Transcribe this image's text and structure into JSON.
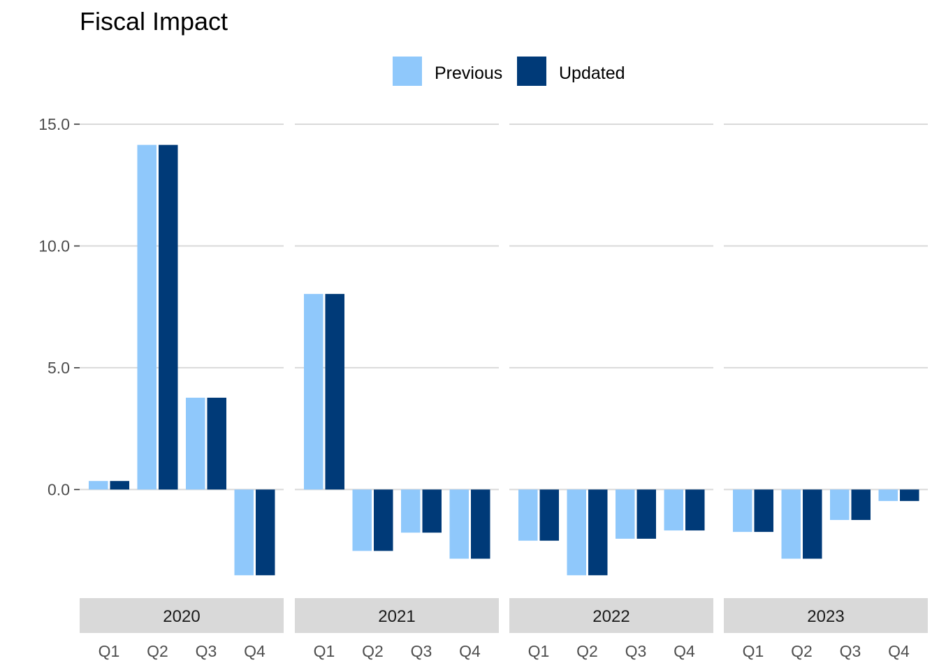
{
  "chart_data": {
    "type": "bar",
    "title": "Fiscal Impact",
    "xlabel": "",
    "ylabel": "",
    "ylim": [
      -4.2,
      15.6
    ],
    "yticks": [
      0.0,
      5.0,
      10.0,
      15.0
    ],
    "ytick_labels": [
      "0.0",
      "5.0",
      "10.0",
      "15.0"
    ],
    "grid": true,
    "legend": {
      "position": "top-center",
      "entries": [
        "Previous",
        "Updated"
      ]
    },
    "colors": {
      "Previous": "#8fc8fb",
      "Updated": "#003a78",
      "strip_background": "#d9d9d9"
    },
    "categories": [
      "Q1",
      "Q2",
      "Q3",
      "Q4"
    ],
    "panels": [
      {
        "label": "2020",
        "series": [
          {
            "name": "Previous",
            "values": [
              0.35,
              14.15,
              3.77,
              -3.52
            ]
          },
          {
            "name": "Updated",
            "values": [
              0.35,
              14.15,
              3.77,
              -3.52
            ]
          }
        ]
      },
      {
        "label": "2021",
        "series": [
          {
            "name": "Previous",
            "values": [
              8.03,
              -2.52,
              -1.77,
              -2.84
            ]
          },
          {
            "name": "Updated",
            "values": [
              8.03,
              -2.52,
              -1.77,
              -2.84
            ]
          }
        ]
      },
      {
        "label": "2022",
        "series": [
          {
            "name": "Previous",
            "values": [
              -2.1,
              -3.52,
              -2.02,
              -1.68
            ]
          },
          {
            "name": "Updated",
            "values": [
              -2.1,
              -3.52,
              -2.02,
              -1.68
            ]
          }
        ]
      },
      {
        "label": "2023",
        "series": [
          {
            "name": "Previous",
            "values": [
              -1.74,
              -2.84,
              -1.25,
              -0.47
            ]
          },
          {
            "name": "Updated",
            "values": [
              -1.74,
              -2.84,
              -1.25,
              -0.47
            ]
          }
        ]
      }
    ]
  }
}
